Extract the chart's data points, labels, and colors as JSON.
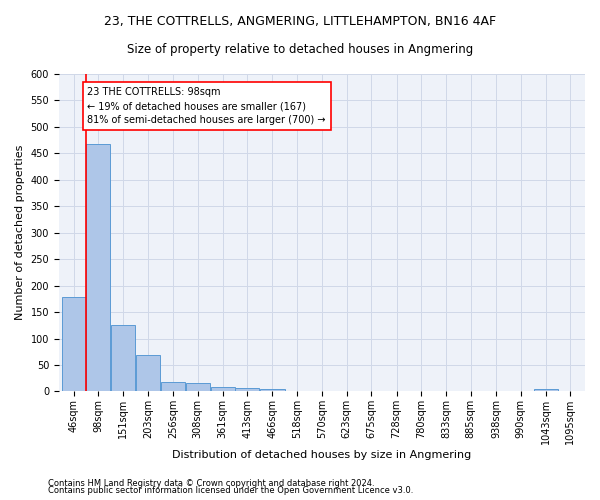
{
  "title": "23, THE COTTRELLS, ANGMERING, LITTLEHAMPTON, BN16 4AF",
  "subtitle": "Size of property relative to detached houses in Angmering",
  "xlabel": "Distribution of detached houses by size in Angmering",
  "ylabel": "Number of detached properties",
  "bins": [
    46,
    98,
    151,
    203,
    256,
    308,
    361,
    413,
    466,
    518,
    570,
    623,
    675,
    728,
    780,
    833,
    885,
    938,
    990,
    1043,
    1095
  ],
  "bin_labels": [
    "46sqm",
    "98sqm",
    "151sqm",
    "203sqm",
    "256sqm",
    "308sqm",
    "361sqm",
    "413sqm",
    "466sqm",
    "518sqm",
    "570sqm",
    "623sqm",
    "675sqm",
    "728sqm",
    "780sqm",
    "833sqm",
    "885sqm",
    "938sqm",
    "990sqm",
    "1043sqm",
    "1095sqm"
  ],
  "counts": [
    178,
    468,
    125,
    68,
    17,
    15,
    8,
    6,
    4,
    0,
    0,
    0,
    0,
    0,
    0,
    0,
    0,
    0,
    0,
    5,
    0
  ],
  "bar_color": "#aec6e8",
  "bar_edge_color": "#5b9bd5",
  "red_line_bin_index": 1,
  "annotation_text": "23 THE COTTRELLS: 98sqm\n← 19% of detached houses are smaller (167)\n81% of semi-detached houses are larger (700) →",
  "ylim": [
    0,
    600
  ],
  "yticks": [
    0,
    50,
    100,
    150,
    200,
    250,
    300,
    350,
    400,
    450,
    500,
    550,
    600
  ],
  "grid_color": "#d0d8e8",
  "background_color": "#eef2f9",
  "footer1": "Contains HM Land Registry data © Crown copyright and database right 2024.",
  "footer2": "Contains public sector information licensed under the Open Government Licence v3.0.",
  "title_fontsize": 9,
  "subtitle_fontsize": 8.5,
  "xlabel_fontsize": 8,
  "ylabel_fontsize": 8,
  "tick_fontsize": 7,
  "annotation_fontsize": 7,
  "footer_fontsize": 6
}
